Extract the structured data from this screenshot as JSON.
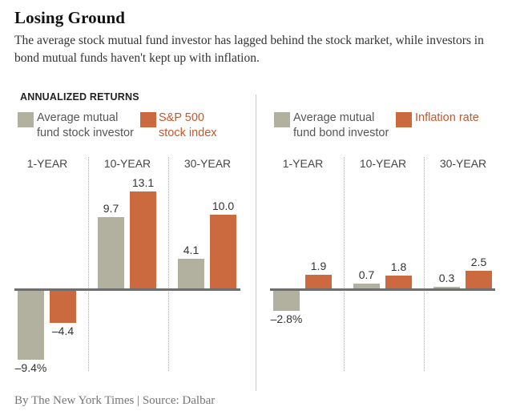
{
  "header": {
    "title": "Losing Ground",
    "subtitle": "The average stock mutual fund investor has lagged behind the stock market, while investors in bond mutual funds haven't kept up with inflation."
  },
  "chart": {
    "kicker": "ANNUALIZED RETURNS"
  },
  "colors": {
    "investor_bar": "#b2b09e",
    "benchmark_bar": "#cb6a3f",
    "benchmark_text": "#c4582b"
  },
  "legend": {
    "stock_investor": {
      "line1": "Average mutual",
      "line2": "fund stock investor"
    },
    "sp500": {
      "line1": "S&P 500",
      "line2": "stock index"
    },
    "bond_investor": {
      "line1": "Average mutual",
      "line2": "fund bond investor"
    },
    "inflation": {
      "line1": "Inflation rate"
    }
  },
  "chart_data": [
    {
      "type": "bar",
      "panel": "stock-funds",
      "title": "ANNUALIZED RETURNS",
      "categories": [
        "1-YEAR",
        "10-YEAR",
        "30-YEAR"
      ],
      "series": [
        {
          "name": "Average mutual fund stock investor",
          "color": "#b2b09e",
          "values": [
            -9.4,
            9.7,
            4.1
          ],
          "labels": [
            "–9.4%",
            "9.7",
            "4.1"
          ]
        },
        {
          "name": "S&P 500 stock index",
          "color": "#cb6a3f",
          "values": [
            -4.4,
            13.1,
            10.0
          ],
          "labels": [
            "–4.4",
            "13.1",
            "10.0"
          ]
        }
      ],
      "ylim": [
        -11,
        14.5
      ],
      "grid": "dotted-column-separators",
      "legend_position": "top"
    },
    {
      "type": "bar",
      "panel": "bond-funds",
      "categories": [
        "1-YEAR",
        "10-YEAR",
        "30-YEAR"
      ],
      "series": [
        {
          "name": "Average mutual fund bond investor",
          "color": "#b2b09e",
          "values": [
            -2.8,
            0.7,
            0.3
          ],
          "labels": [
            "–2.8%",
            "0.7",
            "0.3"
          ]
        },
        {
          "name": "Inflation rate",
          "color": "#cb6a3f",
          "values": [
            1.9,
            1.8,
            2.5
          ],
          "labels": [
            "1.9",
            "1.8",
            "2.5"
          ]
        }
      ],
      "ylim": [
        -11,
        14.5
      ],
      "grid": "dotted-column-separators",
      "legend_position": "top"
    }
  ],
  "footer": {
    "credit": "By The New York Times | Source: Dalbar"
  }
}
